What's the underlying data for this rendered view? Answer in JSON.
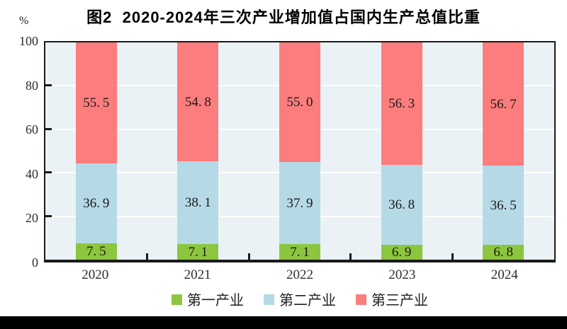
{
  "chart_data": {
    "type": "bar",
    "stacked": true,
    "percent_stacked": true,
    "title": "图2  2020-2024年三次产业增加值占国内生产总值比重",
    "ylabel": "%",
    "xlabel": "",
    "ylim": [
      0,
      100
    ],
    "yticks": [
      0,
      20,
      40,
      60,
      80,
      100
    ],
    "grid": "horizontal-white-gridlines",
    "legend_position": "bottom-center",
    "categories": [
      "2020",
      "2021",
      "2022",
      "2023",
      "2024"
    ],
    "series": [
      {
        "name": "第一产业",
        "color": "#8CC63E",
        "values": [
          7.5,
          7.1,
          7.1,
          6.9,
          6.8
        ]
      },
      {
        "name": "第二产业",
        "color": "#B5DAE6",
        "values": [
          36.9,
          38.1,
          37.9,
          36.8,
          36.5
        ]
      },
      {
        "name": "第三产业",
        "color": "#FC7D7D",
        "values": [
          55.5,
          54.8,
          55.0,
          56.3,
          56.7
        ]
      }
    ],
    "colors": {
      "plot_background": "#EBF2F6",
      "axis": "#1A1A1A",
      "gridline": "#FFFFFF",
      "label_text": "#1A1A1A"
    }
  }
}
